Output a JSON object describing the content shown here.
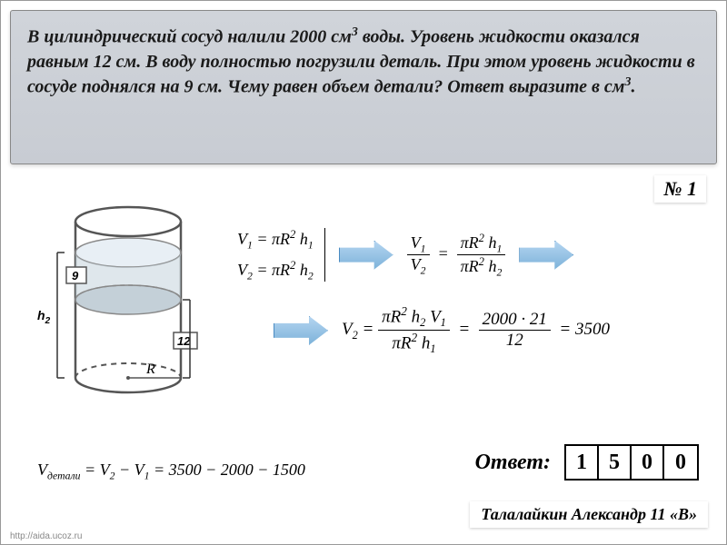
{
  "problem": {
    "text_html": "В цилиндрический сосуд налили 2000 см<sup>3</sup> воды. Уровень жидкости оказался равным 12 см. В воду полностью погрузили деталь. При этом уровень жидкости в сосуде поднялся на 9 см. Чему равен объем детали? Ответ выразите в см<sup>3</sup>.",
    "number": "№ 1"
  },
  "diagram": {
    "R_label": "R",
    "h_lower": "12",
    "h_upper": "9",
    "h2_label": "h",
    "h2_sub": "2",
    "colors": {
      "outline": "#555555",
      "water_fill": "#c5d3dd",
      "top_fill": "#d8e4ee",
      "box_fill": "#ffffff"
    }
  },
  "formulas": {
    "v1": "V<sub>1</sub> = πR<sup>2</sup> h<sub>1</sub>",
    "v2": "V<sub>2</sub> = πR<sup>2</sup> h<sub>2</sub>",
    "ratio_n": "V<sub>1</sub>",
    "ratio_d": "V<sub>2</sub>",
    "ratio_rn": "πR<sup>2</sup> h<sub>1</sub>",
    "ratio_rd": "πR<sup>2</sup> h<sub>2</sub>",
    "v2_eq_lhs": "V<sub>2</sub> =",
    "v2_eq_n": "πR<sup>2</sup> h<sub>2</sub> V<sub>1</sub>",
    "v2_eq_d": "πR<sup>2</sup> h<sub>1</sub>",
    "v2_num_n": "2000 · 21",
    "v2_num_d": "12",
    "v2_result": "= 3500",
    "vdet": "V<sub>детали</sub> = V<sub>2</sub> − V<sub>1</sub> = 3500 − 2000 − 1500"
  },
  "answer": {
    "label": "Ответ:",
    "cells": [
      "1",
      "5",
      "0",
      "0"
    ]
  },
  "author": "Талалайкин Александр 11 «В»",
  "url": "http://aida.ucoz.ru",
  "colors": {
    "problem_bg_top": "#d0d4da",
    "problem_bg_bottom": "#c8ccd3",
    "arrow_top": "#b3d4f0",
    "arrow_bottom": "#7eb3da"
  }
}
